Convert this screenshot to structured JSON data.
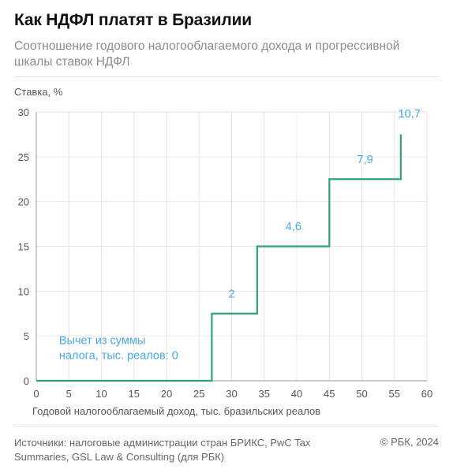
{
  "header": {
    "title": "Как НДФЛ платят в Бразилии",
    "subtitle": "Соотношение годового налогооблагаемого дохода и прогрессивной шкалы ставок НДФЛ"
  },
  "footer": {
    "sources": "Источники: налоговые администрации стран БРИКС, PwC Tax Summaries, GSL Law & Consulting (для РБК)",
    "copyright": "© РБК, 2024"
  },
  "colors": {
    "line": "#2ea37a",
    "label": "#4aa8e6",
    "grid": "#e6e6e6",
    "axis": "#9a9a9a"
  },
  "chart_data": {
    "type": "line",
    "step": true,
    "title": "Как НДФЛ платят в Бразилии",
    "xlabel": "Годовой налогооблагаемый доход, тыс. бразильских реалов",
    "ylabel": "Ставка, %",
    "xlim": [
      0,
      60
    ],
    "ylim": [
      0,
      30
    ],
    "xticks": [
      0,
      5,
      10,
      15,
      20,
      25,
      30,
      35,
      40,
      45,
      50,
      55,
      60
    ],
    "yticks": [
      0,
      5,
      10,
      15,
      20,
      25,
      30
    ],
    "grid": true,
    "series": [
      {
        "x": [
          0,
          26.96,
          26.96,
          33.92,
          33.92,
          45.01,
          45.01,
          55.98,
          55.98
        ],
        "y": [
          0,
          0,
          7.5,
          7.5,
          15,
          15,
          22.5,
          22.5,
          27.5
        ]
      }
    ],
    "annotations": [
      {
        "text": "Вычет из суммы налога, тыс. реалов: 0",
        "x": 3.5,
        "y": 2.5
      },
      {
        "text": "2",
        "x": 30.0,
        "y": 9.3
      },
      {
        "text": "4,6",
        "x": 39.5,
        "y": 16.8
      },
      {
        "text": "7,9",
        "x": 50.5,
        "y": 24.3
      },
      {
        "text": "10,7",
        "x": 57.3,
        "y": 29.4
      }
    ]
  }
}
